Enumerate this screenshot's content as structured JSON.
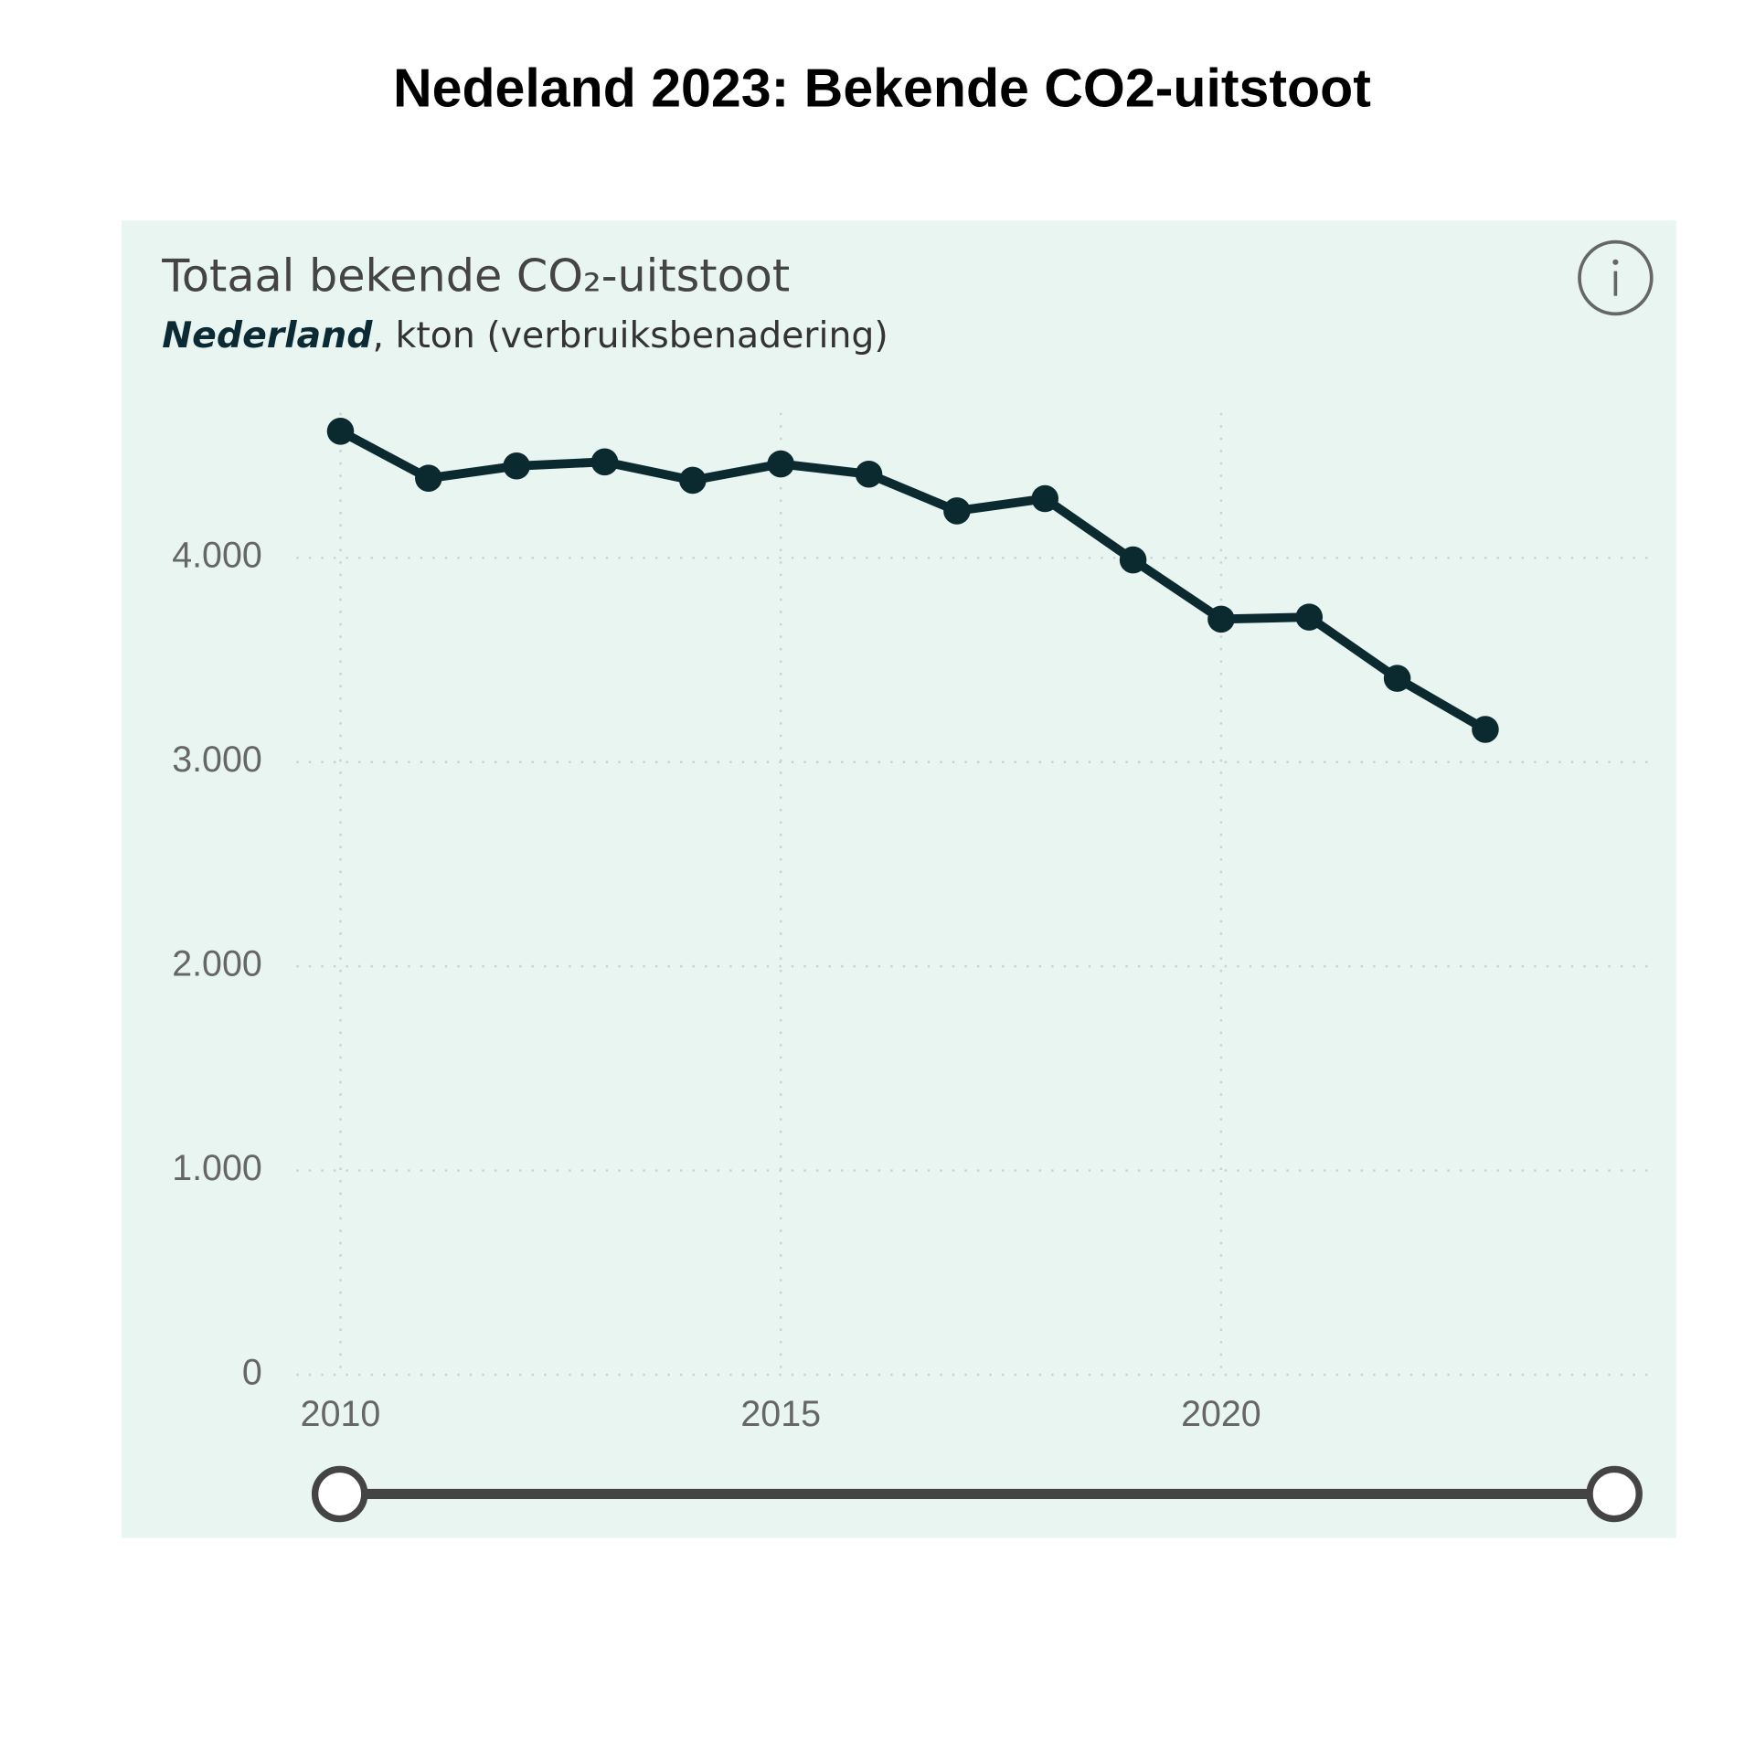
{
  "header": {
    "title": "Nedeland 2023: Bekende CO2-uitstoot"
  },
  "chart_data": {
    "type": "line",
    "title": "Totaal bekende CO₂-uitstoot",
    "subtitle_place": "Nederland",
    "subtitle_rest": ", kton (verbruiksbenadering)",
    "x": [
      2010,
      2011,
      2012,
      2013,
      2014,
      2015,
      2016,
      2017,
      2018,
      2019,
      2020,
      2021,
      2022,
      2023
    ],
    "values": [
      4620,
      4390,
      4450,
      4470,
      4380,
      4460,
      4410,
      4230,
      4290,
      3990,
      3700,
      3710,
      3410,
      3160
    ],
    "color": "#0b2a2f",
    "xlim": [
      2009.5,
      2024.9
    ],
    "xticks": [
      2010,
      2015,
      2020
    ],
    "ylim": [
      0,
      4710
    ],
    "yticks": [
      0,
      {
        "value": 1000,
        "label": "1.000"
      },
      {
        "value": 2000,
        "label": "2.000"
      },
      {
        "value": 3000,
        "label": "3.000"
      },
      {
        "value": 4000,
        "label": "4.000"
      }
    ],
    "grid": true
  }
}
